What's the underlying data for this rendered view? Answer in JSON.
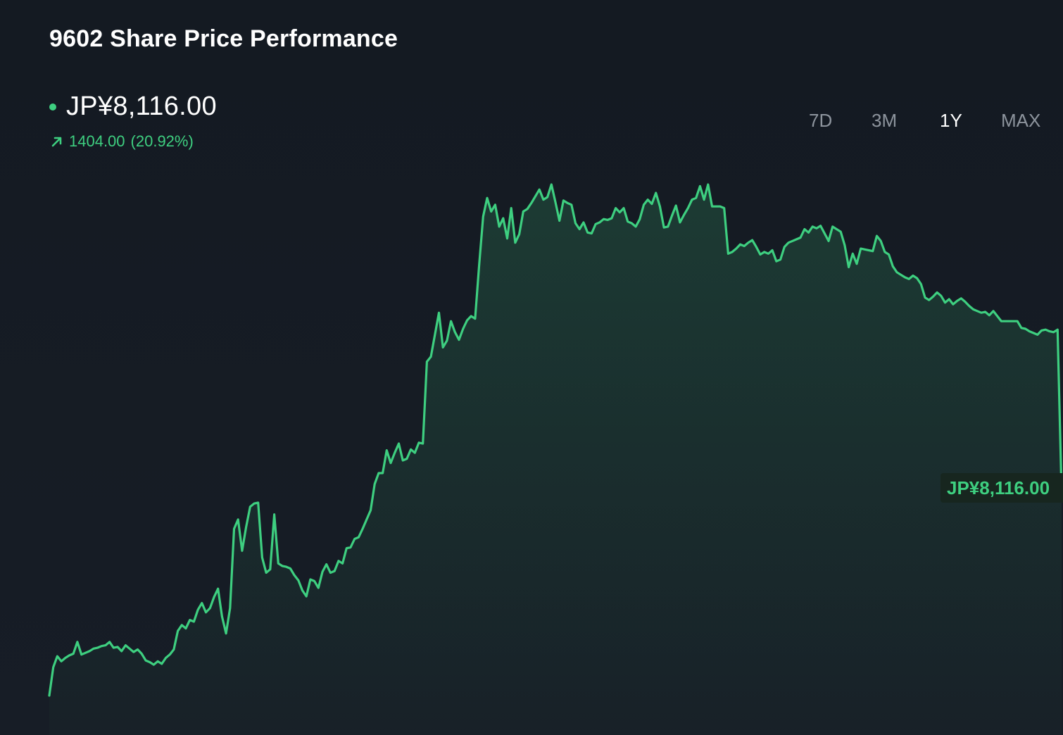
{
  "header": {
    "title": "9602 Share Price Performance",
    "price": "JP¥8,116.00",
    "change_abs": "1404.00",
    "change_pct": "(20.92%)"
  },
  "ranges": {
    "tabs": [
      {
        "label": "7D",
        "active": false
      },
      {
        "label": "3M",
        "active": false
      },
      {
        "label": "1Y",
        "active": true
      },
      {
        "label": "MAX",
        "active": false
      }
    ]
  },
  "colors": {
    "line": "#3ecf80",
    "background": "#151b23",
    "text": "#ffffff",
    "muted": "#8d949d"
  },
  "icons": {
    "change": "arrow-up-right-icon",
    "price_marker": "dot-icon"
  },
  "chart_data": {
    "type": "area",
    "title": "9602 Share Price Performance",
    "unit": "JP¥",
    "grid": false,
    "last_value_label": "JP¥8,116.00",
    "values": [
      6712,
      6880,
      6945,
      6915,
      6935,
      6950,
      6960,
      7030,
      6955,
      6965,
      6975,
      6990,
      6995,
      7005,
      7010,
      7030,
      6995,
      7000,
      6975,
      7010,
      6990,
      6970,
      6985,
      6960,
      6920,
      6910,
      6895,
      6915,
      6900,
      6935,
      6955,
      6985,
      7095,
      7130,
      7110,
      7160,
      7150,
      7220,
      7260,
      7205,
      7230,
      7295,
      7345,
      7180,
      7080,
      7230,
      7700,
      7755,
      7570,
      7710,
      7830,
      7850,
      7855,
      7530,
      7440,
      7460,
      7785,
      7495,
      7480,
      7475,
      7465,
      7425,
      7395,
      7335,
      7300,
      7400,
      7390,
      7350,
      7445,
      7490,
      7440,
      7450,
      7510,
      7495,
      7585,
      7590,
      7640,
      7650,
      7700,
      7755,
      7810,
      7965,
      8030,
      8030,
      8165,
      8090,
      8150,
      8205,
      8105,
      8115,
      8170,
      8150,
      8210,
      8205,
      8690,
      8720,
      8850,
      8980,
      8775,
      8815,
      8930,
      8865,
      8820,
      8885,
      8935,
      8960,
      8945,
      9260,
      9550,
      9660,
      9580,
      9620,
      9490,
      9540,
      9420,
      9600,
      9395,
      9445,
      9580,
      9595,
      9630,
      9670,
      9710,
      9650,
      9665,
      9740,
      9635,
      9525,
      9645,
      9630,
      9620,
      9510,
      9475,
      9515,
      9455,
      9450,
      9505,
      9515,
      9535,
      9530,
      9540,
      9600,
      9575,
      9600,
      9520,
      9510,
      9490,
      9535,
      9620,
      9650,
      9625,
      9690,
      9610,
      9485,
      9490,
      9555,
      9615,
      9515,
      9560,
      9600,
      9650,
      9660,
      9730,
      9650,
      9740,
      9610,
      9610,
      9610,
      9600,
      9330,
      9340,
      9360,
      9385,
      9375,
      9395,
      9410,
      9370,
      9325,
      9340,
      9330,
      9350,
      9285,
      9295,
      9370,
      9395,
      9405,
      9415,
      9425,
      9475,
      9455,
      9490,
      9480,
      9495,
      9450,
      9405,
      9490,
      9475,
      9460,
      9380,
      9250,
      9330,
      9270,
      9360,
      9355,
      9350,
      9345,
      9435,
      9405,
      9340,
      9325,
      9255,
      9220,
      9205,
      9190,
      9180,
      9200,
      9185,
      9150,
      9070,
      9055,
      9075,
      9100,
      9080,
      9040,
      9060,
      9030,
      9050,
      9065,
      9045,
      9020,
      9000,
      8990,
      8980,
      8985,
      8965,
      8990,
      8960,
      8930,
      8930,
      8930,
      8930,
      8930,
      8890,
      8885,
      8870,
      8860,
      8850,
      8875,
      8880,
      8870,
      8865,
      8880,
      8116
    ]
  }
}
